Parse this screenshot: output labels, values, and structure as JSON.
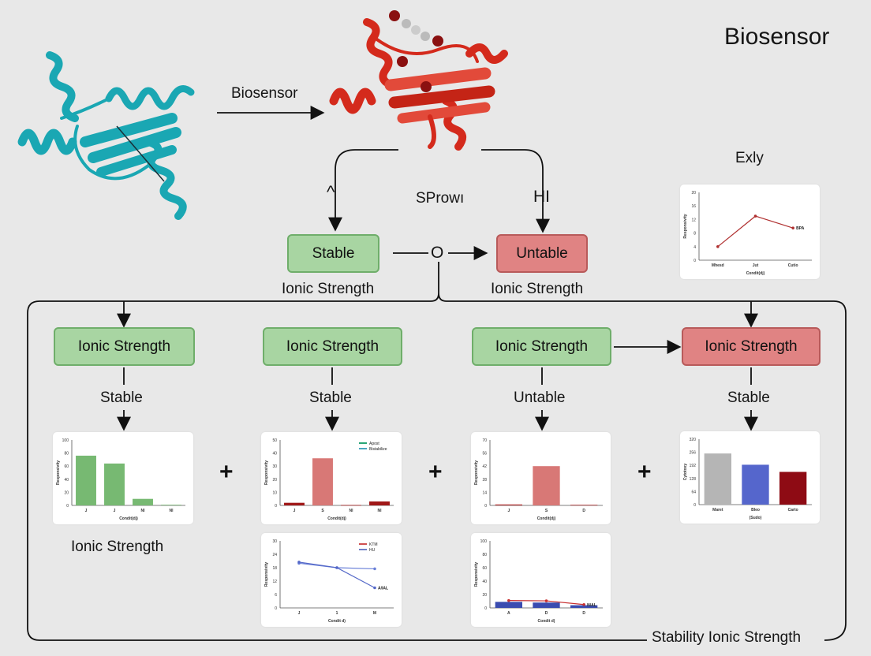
{
  "title": "Biosensor",
  "top": {
    "arrow_label": "Biosensor",
    "left_branch_glyph": "^",
    "center_label": "SProwı",
    "right_branch_label": "HI",
    "stable_box": "Stable",
    "unstable_box": "Untable",
    "junction_label": "O",
    "left_caption": "Ionic Strength",
    "right_caption": "Ionic Strength"
  },
  "colors": {
    "protein_left": "#1aa7b3",
    "protein_right": "#d42a1c",
    "green_box": "#a8d5a2",
    "red_box": "#e08383"
  },
  "side_chart_label": "Exly",
  "row": [
    {
      "box": "Ionic Strength",
      "box_color": "green",
      "state": "Stable"
    },
    {
      "box": "Ionic Strength",
      "box_color": "green",
      "state": "Stable"
    },
    {
      "box": "Ionic Strength",
      "box_color": "green",
      "state": "Untable"
    },
    {
      "box": "Ionic Strength",
      "box_color": "red",
      "state": "Stable"
    }
  ],
  "plus": "+",
  "bottom_left_caption": "Ionic Strength",
  "footer_label": "Stability Ionic Strength",
  "chart_data": [
    {
      "id": "exly",
      "type": "line",
      "categories": [
        "Mhesd",
        "Jut",
        "Cutio"
      ],
      "ylim": [
        0,
        20
      ],
      "ylabel": "Responsivity",
      "xlabel": "Condit(dj)",
      "series": [
        {
          "values": [
            4,
            13,
            9.5
          ],
          "color": "#b03030"
        }
      ],
      "annotation": "BPA"
    },
    {
      "id": "c1",
      "type": "bar",
      "categories": [
        "J",
        "J",
        "Nl",
        "Nl"
      ],
      "ylim": [
        0,
        100
      ],
      "ylabel": "Responsivity",
      "xlabel": "Condit(dj)",
      "values": [
        76,
        64,
        10,
        1
      ],
      "colors": [
        "#77b972",
        "#77b972",
        "#77b972",
        "#77b972"
      ]
    },
    {
      "id": "c2",
      "type": "bar",
      "categories": [
        "J",
        "S",
        "Nl",
        "Nl"
      ],
      "ylim": [
        0,
        50
      ],
      "ylabel": "Responsivity",
      "xlabel": "Condit(dj)",
      "values": [
        2,
        36,
        0.3,
        3
      ],
      "colors": [
        "#a01818",
        "#d87876",
        "#a01818",
        "#a01818"
      ],
      "legend": [
        {
          "name": "Apost",
          "color": "#2aa676"
        },
        {
          "name": "Bistabilize",
          "color": "#4aa6c0"
        }
      ]
    },
    {
      "id": "c3",
      "type": "bar",
      "categories": [
        "J",
        "S",
        "D"
      ],
      "ylim": [
        0,
        70
      ],
      "ylabel": "Responsivity",
      "xlabel": "Condit(dj)",
      "values": [
        1,
        42,
        0.6
      ],
      "colors": [
        "#b02828",
        "#d87876",
        "#b02828"
      ]
    },
    {
      "id": "c4",
      "type": "bar",
      "categories": [
        "Maret",
        "Bleo",
        "Carto"
      ],
      "ylim": [
        0,
        320
      ],
      "ylabel": "Cytotoxy",
      "xlabel": "(Sudo)",
      "values": [
        250,
        195,
        160
      ],
      "colors": [
        "#b5b5b5",
        "#5566cc",
        "#8e0b14"
      ]
    },
    {
      "id": "c5",
      "type": "line",
      "categories": [
        "J",
        "1",
        "M"
      ],
      "ylim": [
        0,
        30
      ],
      "ylabel": "Responsivity",
      "xlabel": "Condit d)",
      "series": [
        {
          "name": "KTM",
          "values": [
            20,
            18,
            17.5
          ],
          "color": "#6a80d8"
        },
        {
          "name": "HU",
          "values": [
            20.5,
            18,
            9
          ],
          "color": "#5468c8"
        }
      ],
      "legend": [
        {
          "name": "KTM",
          "color": "#d05050"
        },
        {
          "name": "HU",
          "color": "#7080c8"
        }
      ],
      "annotation": "A/IAL"
    },
    {
      "id": "c6",
      "type": "combo",
      "categories": [
        "A",
        "D",
        "D"
      ],
      "ylim": [
        0,
        100
      ],
      "ylabel": "Responsivity",
      "xlabel": "Condit d)",
      "values": [
        9,
        8,
        4
      ],
      "colors": [
        "#3a4cb0",
        "#3a4cb0",
        "#3a4cb0"
      ],
      "series": [
        {
          "values": [
            11,
            10.5,
            5
          ],
          "color": "#c83030"
        }
      ],
      "annotation": "N/AL"
    }
  ]
}
